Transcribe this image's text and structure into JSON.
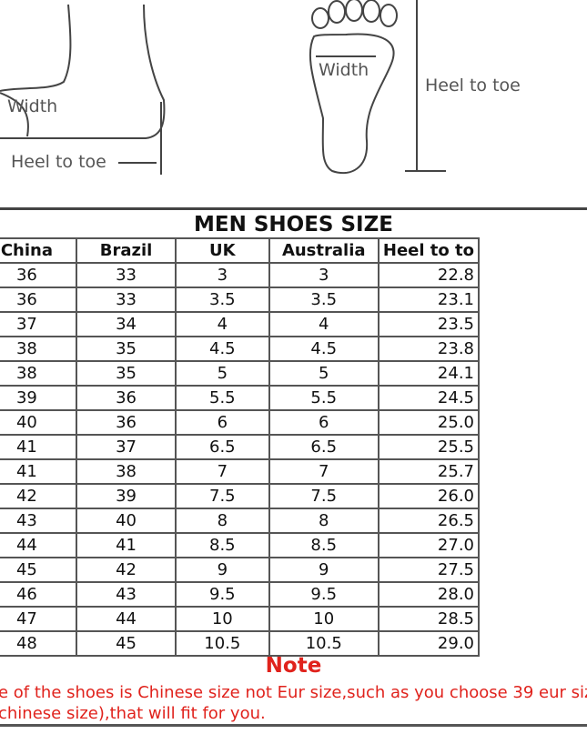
{
  "illustration": {
    "side_view": {
      "width_label": "Width",
      "length_label": "Heel to toe"
    },
    "sole_view": {
      "width_label": "Width",
      "length_label": "Heel to toe"
    }
  },
  "table": {
    "title": "MEN SHOES SIZE",
    "headers": [
      "",
      "China",
      "Brazil",
      "UK",
      "Australia",
      "Heel to to"
    ],
    "rows": [
      [
        "36",
        "33",
        "3",
        "3",
        "22.8"
      ],
      [
        "36",
        "33",
        "3.5",
        "3.5",
        "23.1"
      ],
      [
        "37",
        "34",
        "4",
        "4",
        "23.5"
      ],
      [
        "38",
        "35",
        "4.5",
        "4.5",
        "23.8"
      ],
      [
        "38",
        "35",
        "5",
        "5",
        "24.1"
      ],
      [
        "39",
        "36",
        "5.5",
        "5.5",
        "24.5"
      ],
      [
        "40",
        "36",
        "6",
        "6",
        "25.0"
      ],
      [
        "41",
        "37",
        "6.5",
        "6.5",
        "25.5"
      ],
      [
        "41",
        "38",
        "7",
        "7",
        "25.7"
      ],
      [
        "42",
        "39",
        "7.5",
        "7.5",
        "26.0"
      ],
      [
        "43",
        "40",
        "8",
        "8",
        "26.5"
      ],
      [
        "44",
        "41",
        "8.5",
        "8.5",
        "27.0"
      ],
      [
        "45",
        "42",
        "9",
        "9",
        "27.5"
      ],
      [
        "46",
        "43",
        "9.5",
        "9.5",
        "28.0"
      ],
      [
        "47",
        "44",
        "10",
        "10",
        "28.5"
      ],
      [
        "48",
        "45",
        "10.5",
        "10.5",
        "29.0"
      ]
    ]
  },
  "note": {
    "heading": "Note",
    "line1": "e of the shoes is Chinese size not Eur size,such as you choose 39 eur siz",
    "line2": "chinese size),that will fit for you."
  },
  "colors": {
    "note": "#e0221c",
    "border": "#555555"
  }
}
